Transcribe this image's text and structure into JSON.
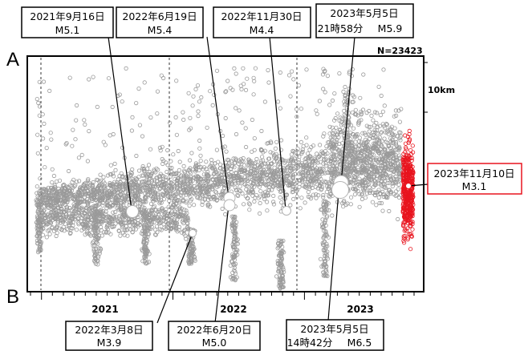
{
  "chart_data": {
    "type": "scatter",
    "n_label": "N=23423",
    "scale_label": "10km",
    "axis_start": "A",
    "axis_end": "B",
    "x_ticks": [
      "2021",
      "2022",
      "2023"
    ],
    "x_range": [
      "2020-12",
      "2023-11-10"
    ],
    "highlight_color": "#e8141e",
    "point_color": "#9a9a9a",
    "events": [
      {
        "date": "2021年9月16日",
        "magnitude": "M5.1",
        "t": "2021-09-16"
      },
      {
        "date": "2022年6月19日",
        "magnitude": "M5.4",
        "t": "2022-06-19"
      },
      {
        "date": "2022年11月30日",
        "magnitude": "M4.4",
        "t": "2022-11-30"
      },
      {
        "date": "2023年5月5日",
        "time": "21時58分",
        "magnitude": "M5.9",
        "t": "2023-05-05"
      },
      {
        "date": "2023年11月10日",
        "magnitude": "M3.1",
        "t": "2023-11-10"
      },
      {
        "date": "2022年3月8日",
        "magnitude": "M3.9",
        "t": "2022-03-08"
      },
      {
        "date": "2022年6月20日",
        "magnitude": "M5.0",
        "t": "2022-06-20"
      },
      {
        "date": "2023年5月5日",
        "time": "14時42分",
        "magnitude": "M6.5",
        "t": "2023-05-05"
      }
    ]
  }
}
